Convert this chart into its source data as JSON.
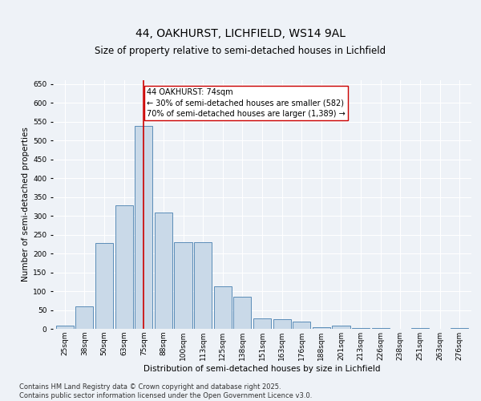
{
  "title1": "44, OAKHURST, LICHFIELD, WS14 9AL",
  "title2": "Size of property relative to semi-detached houses in Lichfield",
  "xlabel": "Distribution of semi-detached houses by size in Lichfield",
  "ylabel": "Number of semi-detached properties",
  "categories": [
    "25sqm",
    "38sqm",
    "50sqm",
    "63sqm",
    "75sqm",
    "88sqm",
    "100sqm",
    "113sqm",
    "125sqm",
    "138sqm",
    "151sqm",
    "163sqm",
    "176sqm",
    "188sqm",
    "201sqm",
    "213sqm",
    "226sqm",
    "238sqm",
    "251sqm",
    "263sqm",
    "276sqm"
  ],
  "values": [
    8,
    60,
    228,
    328,
    538,
    308,
    230,
    230,
    112,
    85,
    28,
    25,
    20,
    5,
    8,
    2,
    2,
    0,
    2,
    0,
    3
  ],
  "bar_color": "#c9d9e8",
  "bar_edge_color": "#5b8db8",
  "highlight_index": 4,
  "highlight_line_color": "#cc0000",
  "annotation_line1": "44 OAKHURST: 74sqm",
  "annotation_line2": "← 30% of semi-detached houses are smaller (582)",
  "annotation_line3": "70% of semi-detached houses are larger (1,389) →",
  "annotation_box_color": "#ffffff",
  "annotation_box_edge_color": "#cc0000",
  "ylim": [
    0,
    660
  ],
  "yticks": [
    0,
    50,
    100,
    150,
    200,
    250,
    300,
    350,
    400,
    450,
    500,
    550,
    600,
    650
  ],
  "background_color": "#eef2f7",
  "plot_bg_color": "#eef2f7",
  "footer1": "Contains HM Land Registry data © Crown copyright and database right 2025.",
  "footer2": "Contains public sector information licensed under the Open Government Licence v3.0.",
  "title1_fontsize": 10,
  "title2_fontsize": 8.5,
  "axis_label_fontsize": 7.5,
  "tick_fontsize": 6.5,
  "annotation_fontsize": 7,
  "footer_fontsize": 6
}
